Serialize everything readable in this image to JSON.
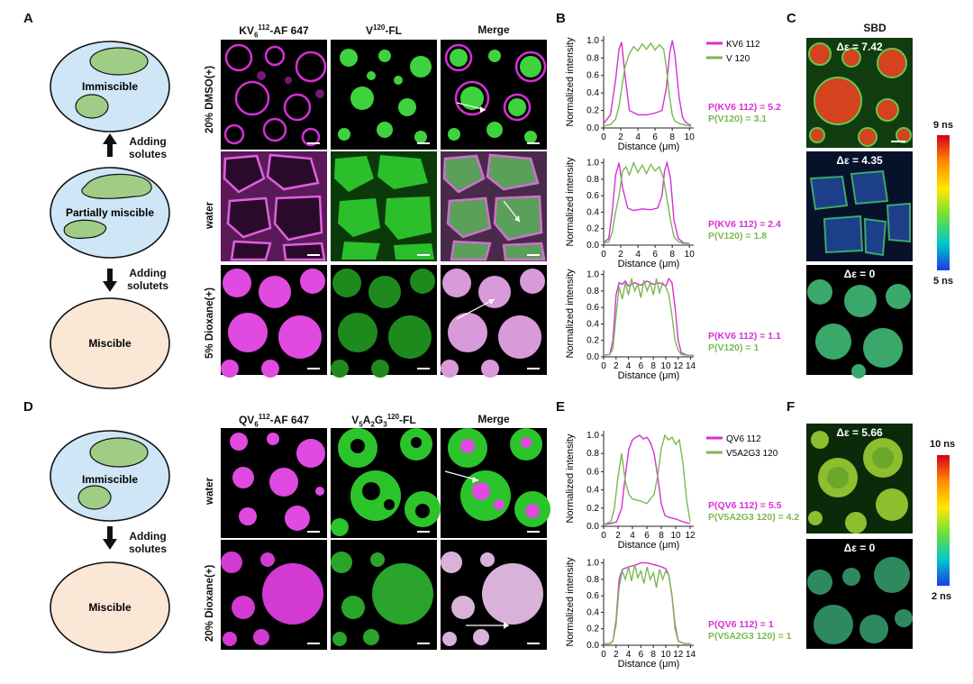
{
  "panels": {
    "A": "A",
    "B": "B",
    "C": "C",
    "D": "D",
    "E": "E",
    "F": "F"
  },
  "schematic_top": {
    "states": [
      "Immiscible",
      "Partially miscible",
      "Miscible"
    ],
    "arrow1": [
      "Adding",
      "solutes"
    ],
    "arrow2": [
      "Adding",
      "solutets"
    ]
  },
  "schematic_bottom": {
    "states": [
      "Immiscible",
      "Miscible"
    ],
    "arrow": [
      "Adding",
      "solutes"
    ]
  },
  "micro_top": {
    "columns": [
      "KV",
      "V",
      "Merge"
    ],
    "col1_html": {
      "base": "KV",
      "sub": "6",
      "sup": "112",
      "rest": "-AF 647"
    },
    "col2_html": {
      "base": "V",
      "sup": "120",
      "rest": "-FL"
    },
    "rows": [
      "20% DMSO(+)",
      "water",
      "5% Dioxane(+)"
    ]
  },
  "micro_bottom": {
    "col1_html": {
      "base": "QV",
      "sub": "6",
      "sup": "112",
      "rest": "-AF 647"
    },
    "col2_html": {
      "base": "V",
      "sub": "5",
      "mid": "A",
      "sub2": "2",
      "mid2": "G",
      "sub3": "3",
      "sup": "120",
      "rest": "-FL"
    },
    "col3": "Merge",
    "rows": [
      "water",
      "20% Dioxane(+)"
    ]
  },
  "flim_top": {
    "title": "SBD",
    "labels": [
      "Δε = 7.42",
      "Δε = 4.35",
      "Δε = 0"
    ],
    "colorbar_max": "9 ns",
    "colorbar_min": "5 ns"
  },
  "flim_bottom": {
    "labels": [
      "Δε = 5.66",
      "Δε = 0"
    ],
    "colorbar_max": "10 ns",
    "colorbar_min": "2 ns"
  },
  "colors": {
    "magenta": "#d62fd6",
    "green": "#79b94f",
    "immiscible_fill": "#cfe6f6",
    "miscible_fill": "#fbe7d6",
    "droplet_fill": "#9fcd86"
  },
  "chart_data": [
    {
      "id": "B1",
      "type": "line",
      "xlabel": "Distance (μm)",
      "ylabel": "Normalized intensity",
      "xlim": [
        0,
        10.5
      ],
      "ylim": [
        0,
        1.05
      ],
      "xticks": [
        0,
        2,
        4,
        6,
        8,
        10
      ],
      "yticks": [
        0.0,
        0.2,
        0.4,
        0.6,
        0.8,
        1.0
      ],
      "legend": [
        "KV6 112",
        "V 120"
      ],
      "annotations": [
        "P(KV6 112) = 5.2",
        "P(V120) = 3.1"
      ],
      "series": [
        {
          "name": "KV6 112",
          "color": "magenta",
          "x": [
            0,
            0.8,
            1.4,
            1.8,
            2.1,
            2.5,
            3,
            4,
            5,
            6,
            6.8,
            7.3,
            7.7,
            8,
            8.3,
            8.8,
            9.2,
            9.6,
            10.2
          ],
          "y": [
            0.05,
            0.15,
            0.55,
            0.9,
            0.98,
            0.6,
            0.2,
            0.15,
            0.15,
            0.17,
            0.2,
            0.45,
            0.85,
            1.0,
            0.85,
            0.35,
            0.12,
            0.06,
            0.03
          ]
        },
        {
          "name": "V 120",
          "color": "green",
          "x": [
            0,
            0.8,
            1.4,
            1.8,
            2.1,
            2.5,
            3,
            3.5,
            4,
            4.5,
            5,
            5.5,
            6,
            6.5,
            7,
            7.3,
            7.7,
            8,
            8.3,
            8.8,
            9.2,
            9.6,
            10.2
          ],
          "y": [
            0.02,
            0.04,
            0.1,
            0.25,
            0.45,
            0.7,
            0.85,
            0.93,
            0.88,
            0.96,
            0.9,
            0.97,
            0.89,
            0.95,
            0.9,
            0.7,
            0.35,
            0.15,
            0.08,
            0.05,
            0.04,
            0.03,
            0.02
          ]
        }
      ]
    },
    {
      "id": "B2",
      "type": "line",
      "xlabel": "Distance (μm)",
      "ylabel": "Normalized intensity",
      "xlim": [
        0,
        10.5
      ],
      "ylim": [
        0,
        1.05
      ],
      "xticks": [
        0,
        2,
        4,
        6,
        8,
        10
      ],
      "yticks": [
        0.0,
        0.2,
        0.4,
        0.6,
        0.8,
        1.0
      ],
      "annotations": [
        "P(KV6 112) = 2.4",
        "P(V120) = 1.8"
      ],
      "series": [
        {
          "name": "KV6 112",
          "color": "magenta",
          "x": [
            0,
            0.6,
            1.0,
            1.4,
            1.8,
            2.2,
            2.8,
            3.5,
            4.5,
            5.5,
            6.3,
            6.8,
            7.1,
            7.4,
            7.8,
            8.2,
            8.7,
            9.3,
            10
          ],
          "y": [
            0.03,
            0.08,
            0.4,
            0.85,
            1.0,
            0.7,
            0.45,
            0.42,
            0.44,
            0.43,
            0.45,
            0.6,
            0.9,
            1.0,
            0.8,
            0.3,
            0.08,
            0.03,
            0.02
          ]
        },
        {
          "name": "V 120",
          "color": "green",
          "x": [
            0,
            0.6,
            1.0,
            1.4,
            1.8,
            2.2,
            2.6,
            3,
            3.5,
            4,
            4.5,
            5,
            5.5,
            6,
            6.5,
            7,
            7.4,
            7.8,
            8.2,
            8.7,
            9.3,
            10
          ],
          "y": [
            0.02,
            0.04,
            0.15,
            0.4,
            0.6,
            0.9,
            0.95,
            0.85,
            1.0,
            0.88,
            0.97,
            0.87,
            0.98,
            0.9,
            0.95,
            0.8,
            0.55,
            0.3,
            0.1,
            0.04,
            0.02,
            0.02
          ]
        }
      ]
    },
    {
      "id": "B3",
      "type": "line",
      "xlabel": "Distance (μm)",
      "ylabel": "Normalized intensity",
      "xlim": [
        0,
        14.5
      ],
      "ylim": [
        0,
        1.05
      ],
      "xticks": [
        0,
        2,
        4,
        6,
        8,
        10,
        12,
        14
      ],
      "yticks": [
        0.0,
        0.2,
        0.4,
        0.6,
        0.8,
        1.0
      ],
      "annotations": [
        "P(KV6 112) = 1.1",
        "P(V120) = 1"
      ],
      "series": [
        {
          "name": "KV6 112",
          "color": "magenta",
          "x": [
            0,
            1,
            1.5,
            2,
            2.5,
            3,
            3.5,
            4,
            5,
            6,
            7,
            8,
            9,
            10,
            10.5,
            11,
            11.5,
            12,
            12.5,
            13.5,
            14.5
          ],
          "y": [
            0.02,
            0.03,
            0.2,
            0.75,
            0.9,
            0.88,
            0.92,
            0.86,
            0.9,
            0.87,
            0.92,
            0.88,
            0.9,
            0.86,
            0.95,
            0.9,
            0.6,
            0.2,
            0.05,
            0.02,
            0.02
          ]
        },
        {
          "name": "V 120",
          "color": "green",
          "x": [
            0,
            1,
            1.5,
            2,
            2.5,
            3,
            3.5,
            4,
            4.5,
            5,
            5.5,
            6,
            6.5,
            7,
            7.5,
            8,
            8.5,
            9,
            9.5,
            10,
            10.5,
            11,
            11.5,
            12,
            12.5,
            13.5,
            14.5
          ],
          "y": [
            0.02,
            0.03,
            0.1,
            0.5,
            0.85,
            0.7,
            0.9,
            0.75,
            0.95,
            0.8,
            0.88,
            0.72,
            0.93,
            0.8,
            0.9,
            0.75,
            0.95,
            0.78,
            0.9,
            0.85,
            0.75,
            0.5,
            0.2,
            0.08,
            0.03,
            0.02,
            0.02
          ]
        }
      ]
    },
    {
      "id": "E1",
      "type": "line",
      "xlabel": "Distance (μm)",
      "ylabel": "Normalized intensity",
      "xlim": [
        0,
        12.5
      ],
      "ylim": [
        0,
        1.05
      ],
      "xticks": [
        0,
        2,
        4,
        6,
        8,
        10,
        12
      ],
      "yticks": [
        0.0,
        0.2,
        0.4,
        0.6,
        0.8,
        1.0
      ],
      "legend": [
        "QV6 112",
        "V5A2G3 120"
      ],
      "annotations": [
        "P(QV6 112) = 5.5",
        "P(V5A2G3 120) = 4.2"
      ],
      "series": [
        {
          "name": "QV6 112",
          "color": "magenta",
          "x": [
            0,
            1,
            1.8,
            2.5,
            3,
            3.5,
            4,
            4.5,
            5,
            5.5,
            6,
            6.5,
            7,
            7.5,
            8,
            8.5,
            9,
            10,
            11,
            12
          ],
          "y": [
            0.02,
            0.03,
            0.05,
            0.2,
            0.55,
            0.85,
            0.95,
            0.98,
            1.0,
            0.96,
            0.98,
            0.92,
            0.8,
            0.55,
            0.25,
            0.12,
            0.1,
            0.08,
            0.05,
            0.03
          ]
        },
        {
          "name": "V5A2G3 120",
          "color": "green",
          "x": [
            0,
            1,
            1.5,
            2,
            2.5,
            3,
            3.5,
            4,
            5,
            6,
            7,
            7.5,
            8,
            8.5,
            9,
            9.5,
            10,
            10.5,
            11,
            11.5,
            12
          ],
          "y": [
            0.02,
            0.05,
            0.2,
            0.55,
            0.8,
            0.5,
            0.35,
            0.3,
            0.28,
            0.25,
            0.35,
            0.55,
            0.85,
            1.0,
            0.95,
            0.98,
            0.9,
            0.95,
            0.7,
            0.3,
            0.05
          ]
        }
      ]
    },
    {
      "id": "E2",
      "type": "line",
      "xlabel": "Distance (μm)",
      "ylabel": "Normalized intensity",
      "xlim": [
        0,
        14.5
      ],
      "ylim": [
        0,
        1.05
      ],
      "xticks": [
        0,
        2,
        4,
        6,
        8,
        10,
        12,
        14
      ],
      "yticks": [
        0.0,
        0.2,
        0.4,
        0.6,
        0.8,
        1.0
      ],
      "annotations": [
        "P(QV6 112) = 1",
        "P(V5A2G3 120) = 1"
      ],
      "series": [
        {
          "name": "QV6 112",
          "color": "magenta",
          "x": [
            0,
            1,
            1.5,
            2,
            2.5,
            3,
            4,
            5,
            6,
            7,
            8,
            9,
            10,
            10.5,
            11,
            11.5,
            12,
            13,
            14
          ],
          "y": [
            0.02,
            0.02,
            0.05,
            0.3,
            0.8,
            0.92,
            0.95,
            0.97,
            1.0,
            1.0,
            0.98,
            0.96,
            0.93,
            0.85,
            0.6,
            0.25,
            0.05,
            0.02,
            0.02
          ]
        },
        {
          "name": "V5A2G3 120",
          "color": "green",
          "x": [
            0,
            1,
            1.5,
            2,
            2.5,
            3,
            3.5,
            4,
            4.5,
            5,
            5.5,
            6,
            6.5,
            7,
            7.5,
            8,
            8.5,
            9,
            9.5,
            10,
            10.5,
            11,
            11.5,
            12,
            13,
            14
          ],
          "y": [
            0.02,
            0.02,
            0.05,
            0.25,
            0.7,
            0.9,
            0.8,
            0.95,
            0.78,
            0.98,
            0.82,
            0.9,
            0.75,
            0.95,
            0.8,
            0.88,
            0.7,
            0.92,
            0.8,
            0.9,
            0.85,
            0.6,
            0.2,
            0.05,
            0.02,
            0.02
          ]
        }
      ]
    }
  ]
}
